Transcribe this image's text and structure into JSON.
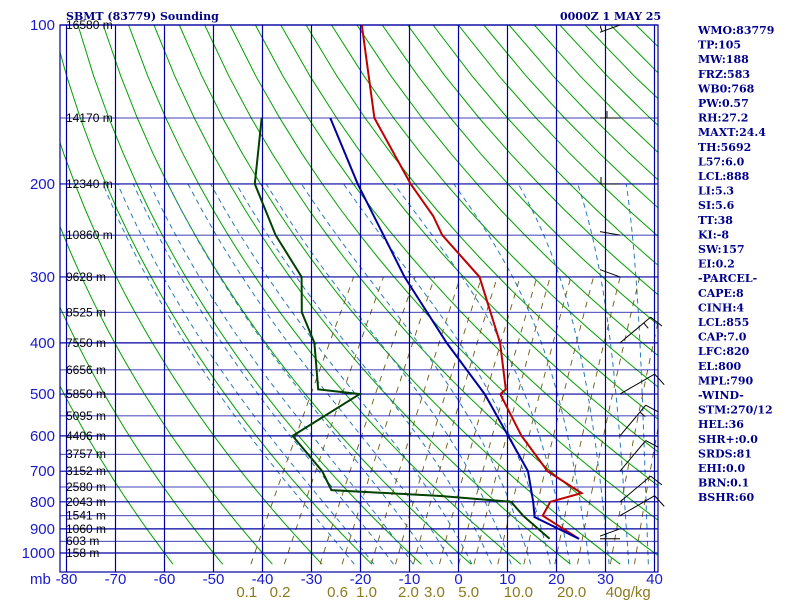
{
  "header": {
    "station": "SBMT (83779) Sounding",
    "time": "0000Z  1 MAY 25"
  },
  "chart_data": {
    "type": "line",
    "title": "SBMT (83779) Sounding",
    "x_unit_label": "mb",
    "pressure_ticks": [
      100,
      200,
      300,
      400,
      500,
      600,
      700,
      800,
      900,
      1000
    ],
    "temp_ticks": [
      -80,
      -70,
      -60,
      -50,
      -40,
      -30,
      -20,
      -10,
      0,
      10,
      20,
      30,
      40
    ],
    "heights": [
      {
        "p": 100,
        "label": "16580 m"
      },
      {
        "p": 150,
        "label": "14170 m"
      },
      {
        "p": 200,
        "label": "12340 m"
      },
      {
        "p": 250,
        "label": "10860 m"
      },
      {
        "p": 300,
        "label": "9628 m"
      },
      {
        "p": 350,
        "label": "8525 m"
      },
      {
        "p": 400,
        "label": "7550 m"
      },
      {
        "p": 450,
        "label": "6656 m"
      },
      {
        "p": 500,
        "label": "5850 m"
      },
      {
        "p": 550,
        "label": "5095 m"
      },
      {
        "p": 600,
        "label": "4406 m"
      },
      {
        "p": 650,
        "label": "3757 m"
      },
      {
        "p": 700,
        "label": "3152 m"
      },
      {
        "p": 750,
        "label": "2580 m"
      },
      {
        "p": 800,
        "label": "2043 m"
      },
      {
        "p": 850,
        "label": "1541 m"
      },
      {
        "p": 900,
        "label": "1060 m"
      },
      {
        "p": 950,
        "label": "603 m"
      },
      {
        "p": 1000,
        "label": "158 m"
      }
    ],
    "mixing_ratio_labels": [
      {
        "w": 0.1,
        "label": "0.1"
      },
      {
        "w": 0.2,
        "label": "0.2"
      },
      {
        "w": 0.6,
        "label": "0.6"
      },
      {
        "w": 1.0,
        "label": "1.0"
      },
      {
        "w": 2.0,
        "label": "2.0"
      },
      {
        "w": 3.0,
        "label": "3.0"
      },
      {
        "w": 5.0,
        "label": "5.0"
      },
      {
        "w": 10.0,
        "label": "10.0"
      },
      {
        "w": 20.0,
        "label": "20.0"
      },
      {
        "w": 40.0,
        "label": "40g/kg"
      }
    ],
    "series": [
      {
        "name": "Temperature",
        "color": "#c00000",
        "points": [
          {
            "p": 940,
            "t": 23.0
          },
          {
            "p": 850,
            "t": 13.0
          },
          {
            "p": 800,
            "t": 13.0
          },
          {
            "p": 770,
            "t": 18.4
          },
          {
            "p": 700,
            "t": 9.0
          },
          {
            "p": 600,
            "t": -0.3
          },
          {
            "p": 500,
            "t": -9.3
          },
          {
            "p": 490,
            "t": -8.7
          },
          {
            "p": 400,
            "t": -15.1
          },
          {
            "p": 300,
            "t": -26.7
          },
          {
            "p": 250,
            "t": -39.0
          },
          {
            "p": 230,
            "t": -43.0
          },
          {
            "p": 200,
            "t": -51.2
          },
          {
            "p": 150,
            "t": -66.0
          },
          {
            "p": 100,
            "t": -79.0
          }
        ]
      },
      {
        "name": "Dewpoint",
        "color": "#004000",
        "points": [
          {
            "p": 940,
            "t": 17.0
          },
          {
            "p": 850,
            "t": 9.0
          },
          {
            "p": 800,
            "t": 5.0
          },
          {
            "p": 780,
            "t": -10.0
          },
          {
            "p": 760,
            "t": -33.0
          },
          {
            "p": 700,
            "t": -37.0
          },
          {
            "p": 600,
            "t": -47.0
          },
          {
            "p": 500,
            "t": -38.0
          },
          {
            "p": 490,
            "t": -47.0
          },
          {
            "p": 400,
            "t": -53.0
          },
          {
            "p": 350,
            "t": -59.0
          },
          {
            "p": 300,
            "t": -63.0
          },
          {
            "p": 250,
            "t": -73.0
          },
          {
            "p": 200,
            "t": -83.0
          },
          {
            "p": 150,
            "t": -89.0
          }
        ]
      },
      {
        "name": "Parcel",
        "color": "#0000a0",
        "points": [
          {
            "p": 940,
            "t": 23.0
          },
          {
            "p": 855,
            "t": 11.5
          },
          {
            "p": 800,
            "t": 9.5
          },
          {
            "p": 700,
            "t": 5.0
          },
          {
            "p": 600,
            "t": -3.0
          },
          {
            "p": 500,
            "t": -12.5
          },
          {
            "p": 400,
            "t": -26.0
          },
          {
            "p": 300,
            "t": -42.0
          },
          {
            "p": 200,
            "t": -62.0
          },
          {
            "p": 150,
            "t": -75.0
          }
        ]
      }
    ],
    "winds": [
      {
        "p": 940,
        "dir": 270,
        "spd": 5
      },
      {
        "p": 900,
        "dir": 250,
        "spd": 5
      },
      {
        "p": 850,
        "dir": 60,
        "spd": 10
      },
      {
        "p": 800,
        "dir": 50,
        "spd": 10
      },
      {
        "p": 700,
        "dir": 40,
        "spd": 10
      },
      {
        "p": 600,
        "dir": 40,
        "spd": 15
      },
      {
        "p": 500,
        "dir": 60,
        "spd": 10
      },
      {
        "p": 400,
        "dir": 50,
        "spd": 15
      },
      {
        "p": 300,
        "dir": 290,
        "spd": 20
      },
      {
        "p": 250,
        "dir": 280,
        "spd": 25
      },
      {
        "p": 200,
        "dir": 270,
        "spd": 35
      },
      {
        "p": 150,
        "dir": 270,
        "spd": 45
      },
      {
        "p": 100,
        "dir": 250,
        "spd": 35
      }
    ],
    "grid": true
  },
  "indices": [
    "WMO:83779",
    "TP:105",
    "MW:188",
    "FRZ:583",
    "WB0:768",
    "PW:0.57",
    "RH:27.2",
    "MAXT:24.4",
    "TH:5692",
    "L57:6.0",
    "LCL:888",
    "LI:5.3",
    "SI:5.6",
    "TT:38",
    "KI:-8",
    "SW:157",
    "EI:0.2",
    "-PARCEL-",
    "CAPE:8",
    "CINH:4",
    "LCL:855",
    "CAP:7.0",
    "LFC:820",
    "EL:800",
    "MPL:790",
    "-WIND-",
    "STM:270/12",
    "HEL:36",
    "SHR+:0.0",
    "SRDS:81",
    "EHI:0.0",
    "BRN:0.1",
    "BSHR:60"
  ],
  "colors": {
    "grid": "#0000a0",
    "dry_adiabat": "#00a000",
    "moist_adiabat": "#2a7ab8",
    "mixing_ratio": "#6b5a10",
    "temperature": "#c00000",
    "dewpoint": "#004000",
    "parcel": "#0000a0"
  }
}
